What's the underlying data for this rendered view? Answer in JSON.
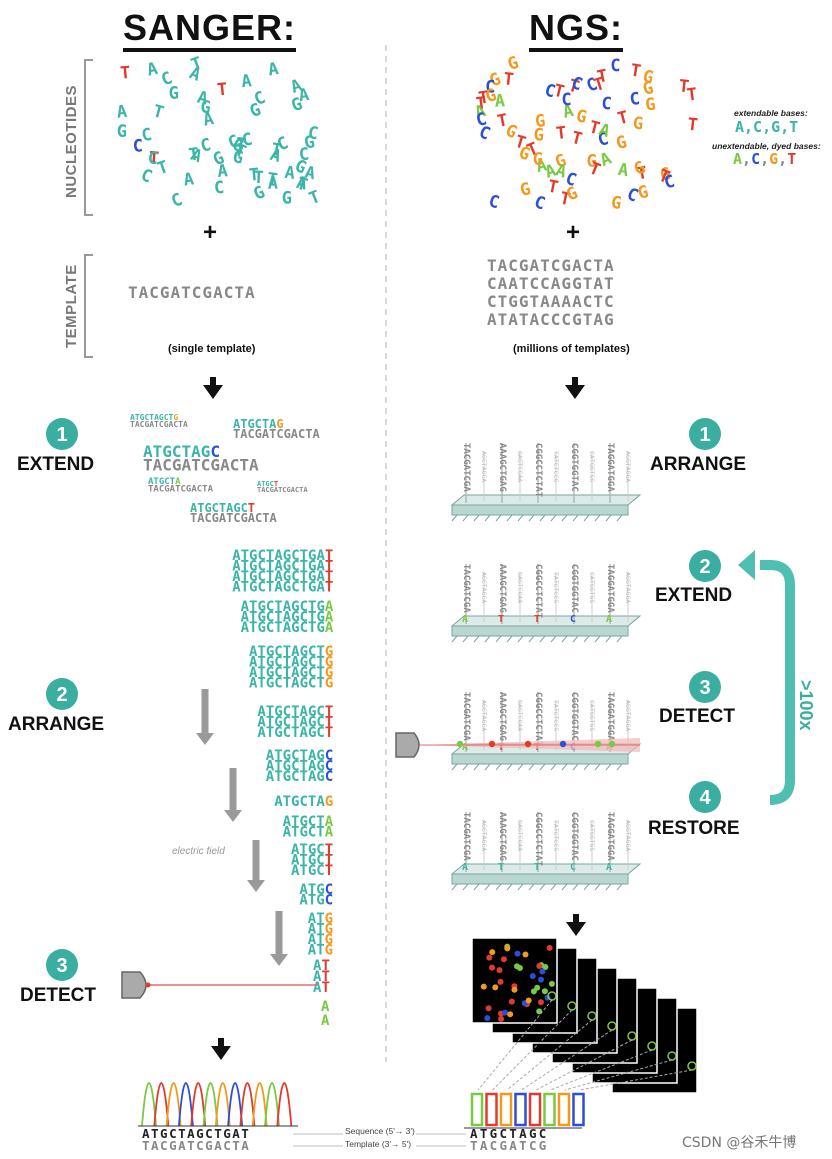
{
  "sanger": {
    "title": "SANGER:",
    "nucleotides_label": "NUCLEOTIDES",
    "template_label": "TEMPLATE",
    "template_seq": "TACGATCGACTA",
    "template_note": "(single template)",
    "steps": [
      {
        "num": "1",
        "label": "EXTEND"
      },
      {
        "num": "2",
        "label": "ARRANGE"
      },
      {
        "num": "3",
        "label": "DETECT"
      }
    ],
    "electric_field": "electric field",
    "sequence_top": "ATGCTAGCTGAT",
    "sequence_bottom": "TACGATCGACTA",
    "seq_label": "Sequence (5'→ 3')",
    "tmpl_label": "Template (3'→ 5')"
  },
  "ngs": {
    "title": "NGS:",
    "templates": [
      "TACGATCGACTA",
      "CAATCCAGGTAT",
      "CTGGTAAAACTC",
      "ATATACCCGTAG"
    ],
    "template_note": "(millions of templates)",
    "extendable_label": "extendable bases:",
    "extendable_bases": "A,C,G,T",
    "unextendable_label": "unextendable, dyed bases:",
    "unextendable_bases": "A,C,G,T",
    "steps": [
      {
        "num": "1",
        "label": "ARRANGE"
      },
      {
        "num": "2",
        "label": "EXTEND"
      },
      {
        "num": "3",
        "label": "DETECT"
      },
      {
        "num": "4",
        "label": "RESTORE"
      }
    ],
    "loop_label": ">100x",
    "sequence_top": "ATGCTAGC",
    "sequence_bottom": "TACGATCG"
  },
  "plus": "+",
  "watermark": "CSDN @谷禾牛博",
  "colors": {
    "A": "#7ac943",
    "C": "#2b4fd8",
    "G": "#f29a1e",
    "T": "#e23b2e",
    "teal": "#3ab5a7",
    "gray": "#888888",
    "arrow": "#4fbfb1"
  }
}
